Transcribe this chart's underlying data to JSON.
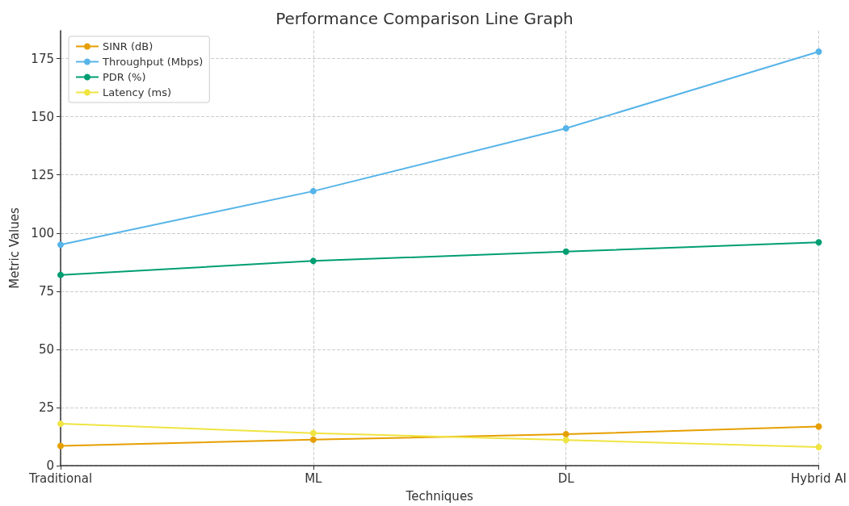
{
  "chart_data": {
    "type": "line",
    "title": "Performance Comparison Line Graph",
    "xlabel": "Techniques",
    "ylabel": "Metric Values",
    "categories": [
      "Traditional",
      "ML",
      "DL",
      "Hybrid AI"
    ],
    "series": [
      {
        "name": "SINR (dB)",
        "color": "#e69f00",
        "values": [
          8.5,
          11.2,
          13.5,
          16.8
        ]
      },
      {
        "name": "Throughput (Mbps)",
        "color": "#56b4e9",
        "values": [
          95,
          118,
          145,
          178
        ]
      },
      {
        "name": "PDR (%)",
        "color": "#009e73",
        "values": [
          82,
          88,
          92,
          96
        ]
      },
      {
        "name": "Latency (ms)",
        "color": "#f0e442",
        "values": [
          18,
          14,
          11,
          8
        ]
      }
    ],
    "ylim": [
      0,
      187
    ],
    "yticks": [
      0,
      25,
      50,
      75,
      100,
      125,
      150,
      175
    ],
    "grid": true,
    "legend": "top left",
    "marker": "circle",
    "line_style": "solid"
  }
}
